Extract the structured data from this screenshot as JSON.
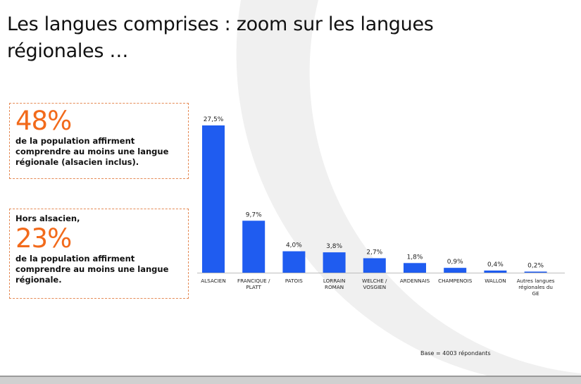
{
  "title": "Les langues comprises : zoom sur les langues régionales …",
  "card1": {
    "stat": "48%",
    "text": "de la population affirment comprendre au moins une langue régionale (alsacien inclus)."
  },
  "card2": {
    "lead": "Hors alsacien,",
    "stat": "23%",
    "text": "de la population affirment comprendre au moins une langue régionale."
  },
  "base_note": "Base = 4003 répondants",
  "colors": {
    "bar": "#1f5cf0",
    "accent": "#f26a1b",
    "card_border": "#e58a55"
  },
  "chart_data": {
    "type": "bar",
    "title": "",
    "xlabel": "",
    "ylabel": "",
    "ylim": [
      0,
      30
    ],
    "categories": [
      [
        "ALSACIEN"
      ],
      [
        "FRANCIQUE /",
        "PLATT"
      ],
      [
        "PATOIS"
      ],
      [
        "LORRAIN",
        "ROMAN"
      ],
      [
        "WELCHE /",
        "VOSGIEN"
      ],
      [
        "ARDENNAIS"
      ],
      [
        "CHAMPENOIS"
      ],
      [
        "WALLON"
      ],
      [
        "Autres langues",
        "régionales du",
        "GE"
      ]
    ],
    "values": [
      27.5,
      9.7,
      4.0,
      3.8,
      2.7,
      1.8,
      0.9,
      0.4,
      0.2
    ],
    "value_labels": [
      "27,5%",
      "9,7%",
      "4,0%",
      "3,8%",
      "2,7%",
      "1,8%",
      "0,9%",
      "0,4%",
      "0,2%"
    ]
  }
}
